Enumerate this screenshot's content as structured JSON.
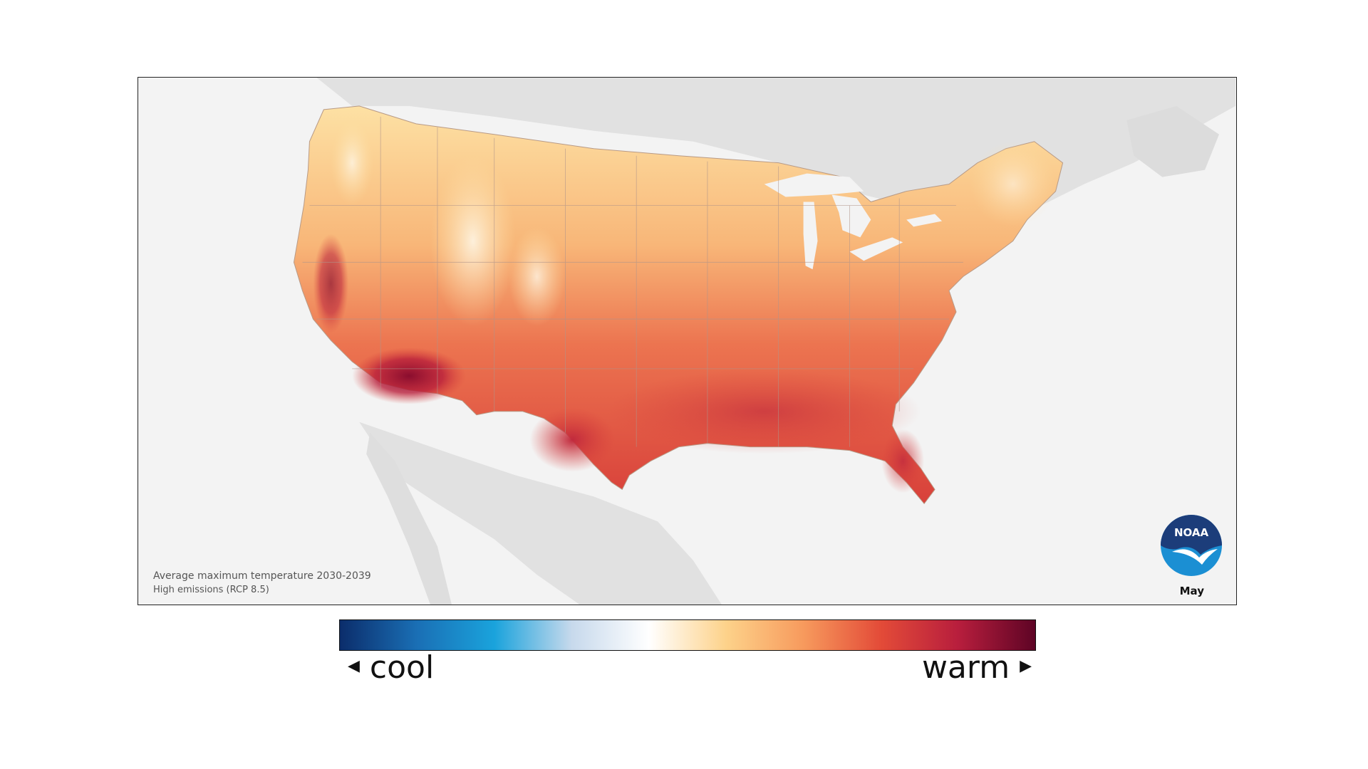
{
  "caption": {
    "title": "Average maximum temperature 2030-2039",
    "subtitle": "High emissions (RCP 8.5)"
  },
  "month": "May",
  "logo": {
    "text": "NOAA",
    "colors": {
      "navy": "#1c3d7a",
      "blue": "#1b8fd3",
      "white": "#ffffff"
    }
  },
  "legend": {
    "low_label": "cool",
    "high_label": "warm",
    "low_arrow": "◀",
    "high_arrow": "▶",
    "gradient": [
      "#0b2d6b",
      "#1a6fb5",
      "#1aa3dc",
      "#c7d9ec",
      "#ffffff",
      "#fdd28a",
      "#f79a5d",
      "#e34b38",
      "#b81e3d",
      "#5e0425"
    ]
  },
  "colors": {
    "background": "#f3f3f3",
    "surrounding_land": "#e1e1e1",
    "cool_area": "#fde3a7",
    "mid_area": "#f7a76a",
    "warm_area": "#e5553d",
    "hot_area": "#c42b3b",
    "hottest_area": "#8e0f2f",
    "snow": "#e8eef6"
  }
}
